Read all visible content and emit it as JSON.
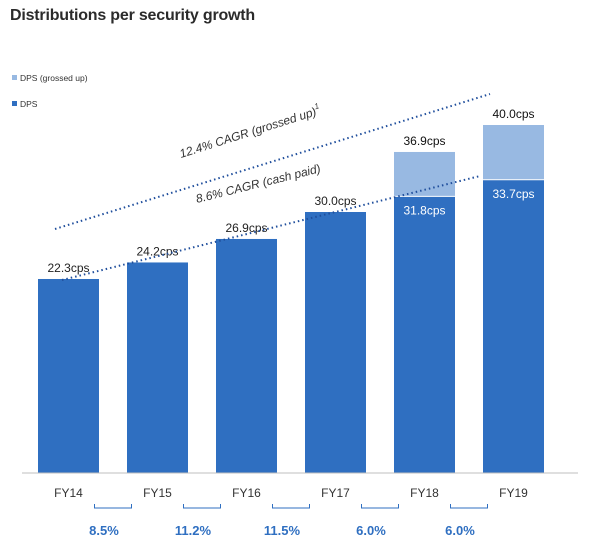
{
  "chart_data": {
    "type": "bar",
    "title": "Distributions per security growth",
    "categories": [
      "FY14",
      "FY15",
      "FY16",
      "FY17",
      "FY18",
      "FY19"
    ],
    "series": [
      {
        "name": "DPS",
        "values": [
          22.3,
          24.2,
          26.9,
          30.0,
          31.8,
          33.7
        ]
      },
      {
        "name": "DPS (grossed up)",
        "values": [
          22.3,
          24.2,
          26.9,
          30.0,
          36.9,
          40.0
        ]
      }
    ],
    "value_labels": {
      "DPS": [
        "22.3cps",
        "24.2cps",
        "26.9cps",
        "30.0cps",
        "31.8cps",
        "33.7cps"
      ],
      "DPS (grossed up)": [
        "",
        "",
        "",
        "",
        "36.9cps",
        "40.0cps"
      ]
    },
    "ylim": [
      0,
      40.0
    ],
    "trendlines": [
      {
        "label": "12.4% CAGR (grossed up)",
        "footnote": "1"
      },
      {
        "label": "8.6% CAGR (cash paid)"
      }
    ],
    "growth_rates": [
      "8.5%",
      "11.2%",
      "11.5%",
      "6.0%",
      "6.0%"
    ],
    "colors": {
      "dps": "#2f6fc1",
      "dps_grossed_up": "#98b9e2",
      "growth_text": "#2f6fc1",
      "trend": "#1f4e9c"
    },
    "legend_position": "top-left"
  }
}
